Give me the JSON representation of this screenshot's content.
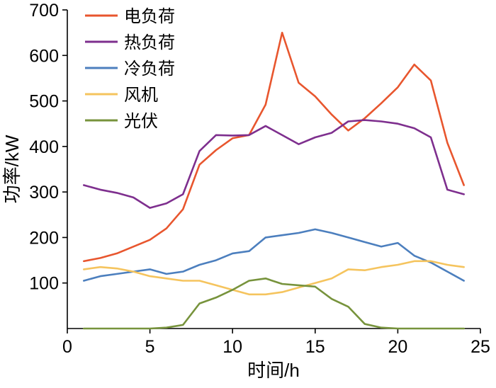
{
  "chart_data": {
    "type": "line",
    "title": "",
    "xlabel": "时间/h",
    "ylabel": "功率/kW",
    "xlim": [
      0,
      25
    ],
    "ylim": [
      0,
      700
    ],
    "xticks": [
      0,
      5,
      10,
      15,
      20,
      25
    ],
    "yticks": [
      100,
      200,
      300,
      400,
      500,
      600,
      700
    ],
    "grid": false,
    "legend_position": "top-left",
    "axis_color": "#000000",
    "x": [
      1,
      2,
      3,
      4,
      5,
      6,
      7,
      8,
      9,
      10,
      11,
      12,
      13,
      14,
      15,
      16,
      17,
      18,
      19,
      20,
      21,
      22,
      23,
      24
    ],
    "series": [
      {
        "name": "电负荷",
        "color": "#E8562E",
        "values": [
          148,
          155,
          165,
          180,
          195,
          220,
          262,
          360,
          392,
          418,
          425,
          492,
          650,
          540,
          510,
          470,
          435,
          462,
          495,
          530,
          580,
          545,
          408,
          315
        ]
      },
      {
        "name": "热负荷",
        "color": "#7E2F8E",
        "values": [
          315,
          305,
          298,
          288,
          265,
          275,
          295,
          390,
          425,
          424,
          425,
          445,
          425,
          405,
          420,
          430,
          455,
          458,
          455,
          450,
          440,
          420,
          305,
          295
        ]
      },
      {
        "name": "冷负荷",
        "color": "#4C7FBE",
        "values": [
          105,
          115,
          120,
          125,
          130,
          120,
          125,
          140,
          150,
          165,
          170,
          200,
          205,
          210,
          218,
          210,
          200,
          190,
          180,
          188,
          160,
          145,
          125,
          105
        ]
      },
      {
        "name": "风机",
        "color": "#F5C45E",
        "values": [
          130,
          135,
          132,
          125,
          115,
          110,
          105,
          105,
          95,
          85,
          75,
          75,
          80,
          90,
          100,
          110,
          130,
          128,
          135,
          140,
          148,
          148,
          140,
          135
        ]
      },
      {
        "name": "光伏",
        "color": "#77933C",
        "values": [
          0,
          0,
          0,
          0,
          0,
          2,
          8,
          55,
          68,
          85,
          105,
          110,
          98,
          95,
          92,
          65,
          48,
          10,
          2,
          0,
          0,
          0,
          0,
          0
        ]
      }
    ]
  }
}
